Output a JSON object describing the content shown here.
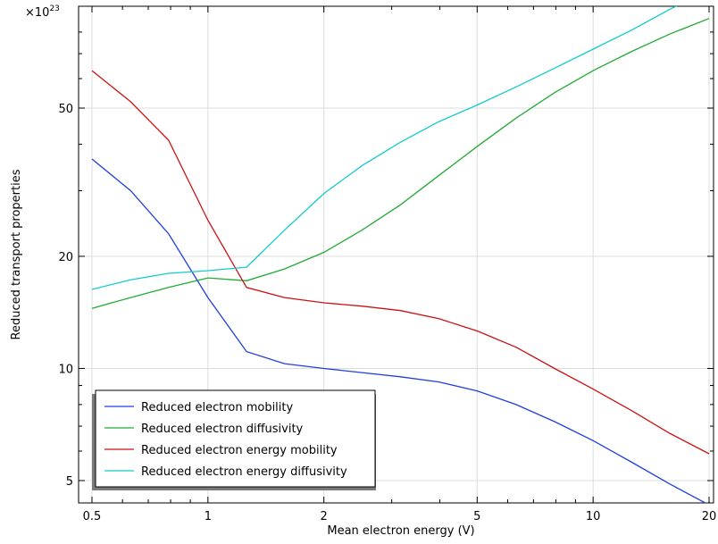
{
  "chart_data": {
    "type": "line",
    "title": "",
    "xlabel": "Mean electron energy (V)",
    "ylabel": "Reduced transport properties",
    "y_multiplier": "×10",
    "y_multiplier_exp": "23",
    "x_scale": "log",
    "y_scale": "log",
    "xlim": [
      0.5,
      20
    ],
    "ylim": [
      4.5,
      90
    ],
    "x_ticks": [
      0.5,
      1,
      2,
      5,
      10,
      20
    ],
    "x_tick_labels": [
      "0.5",
      "1",
      "2",
      "5",
      "10",
      "20"
    ],
    "y_ticks": [
      5,
      10,
      20,
      50
    ],
    "y_tick_labels": [
      "5",
      "10",
      "20",
      "50"
    ],
    "grid": true,
    "legend_position": "bottom-left",
    "x": [
      0.5,
      0.63,
      0.79,
      1.0,
      1.26,
      1.58,
      2.0,
      2.51,
      3.16,
      3.98,
      5.01,
      6.31,
      7.94,
      10.0,
      12.6,
      15.8,
      20.0
    ],
    "series": [
      {
        "name": "Reduced electron mobility",
        "color": "#1f3fe0",
        "values": [
          36.5,
          30.0,
          23.0,
          15.5,
          11.1,
          10.3,
          10.0,
          9.75,
          9.5,
          9.2,
          8.7,
          8.0,
          7.2,
          6.4,
          5.6,
          4.9,
          4.3
        ]
      },
      {
        "name": "Reduced electron diffusivity",
        "color": "#22aa33",
        "values": [
          14.5,
          15.5,
          16.5,
          17.5,
          17.2,
          18.5,
          20.5,
          23.5,
          27.5,
          33.0,
          39.5,
          47.0,
          55.0,
          63.0,
          71.0,
          79.0,
          87.0
        ]
      },
      {
        "name": "Reduced electron energy mobility",
        "color": "#cc1111",
        "values": [
          63.0,
          52.0,
          41.0,
          25.0,
          16.5,
          15.5,
          15.0,
          14.7,
          14.3,
          13.6,
          12.6,
          11.4,
          10.0,
          8.8,
          7.7,
          6.7,
          5.9
        ]
      },
      {
        "name": "Reduced electron energy diffusivity",
        "color": "#11cccc",
        "values": [
          16.3,
          17.3,
          18.0,
          18.3,
          18.7,
          23.5,
          29.5,
          35.0,
          40.5,
          46.0,
          51.0,
          57.0,
          64.0,
          72.0,
          81.0,
          92.0,
          104.0
        ]
      }
    ]
  }
}
